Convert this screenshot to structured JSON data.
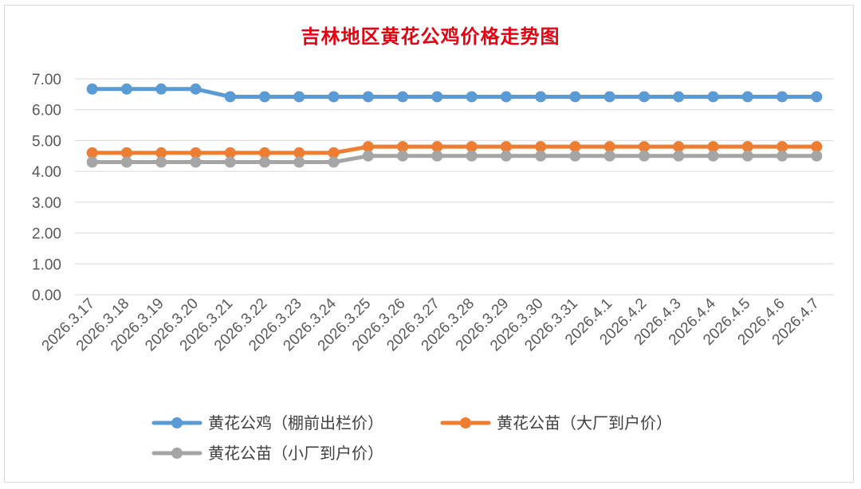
{
  "chart_data": {
    "type": "line",
    "title": "吉林地区黄花公鸡价格走势图",
    "xlabel": "",
    "ylabel": "",
    "ylim": [
      0,
      7
    ],
    "yticks": [
      "0.00",
      "1.00",
      "2.00",
      "3.00",
      "4.00",
      "5.00",
      "6.00",
      "7.00"
    ],
    "grid": true,
    "legend_position": "bottom",
    "categories": [
      "2026.3.17",
      "2026.3.18",
      "2026.3.19",
      "2026.3.20",
      "2026.3.21",
      "2026.3.22",
      "2026.3.23",
      "2026.3.24",
      "2026.3.25",
      "2026.3.26",
      "2026.3.27",
      "2026.3.28",
      "2026.3.29",
      "2026.3.30",
      "2026.3.31",
      "2026.4.1",
      "2026.4.2",
      "2026.4.3",
      "2026.4.4",
      "2026.4.5",
      "2026.4.6",
      "2026.4.7"
    ],
    "series": [
      {
        "name": "黄花公鸡（棚前出栏价）",
        "color": "#5b9bd5",
        "values": [
          6.67,
          6.67,
          6.67,
          6.67,
          6.42,
          6.42,
          6.42,
          6.42,
          6.42,
          6.42,
          6.42,
          6.42,
          6.42,
          6.42,
          6.42,
          6.42,
          6.42,
          6.42,
          6.42,
          6.42,
          6.42,
          6.42
        ]
      },
      {
        "name": "黄花公苗（大厂到户价）",
        "color": "#ed7d31",
        "values": [
          4.6,
          4.6,
          4.6,
          4.6,
          4.6,
          4.6,
          4.6,
          4.6,
          4.8,
          4.8,
          4.8,
          4.8,
          4.8,
          4.8,
          4.8,
          4.8,
          4.8,
          4.8,
          4.8,
          4.8,
          4.8,
          4.8
        ]
      },
      {
        "name": "黄花公苗（小厂到户价）",
        "color": "#a5a5a5",
        "values": [
          4.3,
          4.3,
          4.3,
          4.3,
          4.3,
          4.3,
          4.3,
          4.3,
          4.5,
          4.5,
          4.5,
          4.5,
          4.5,
          4.5,
          4.5,
          4.5,
          4.5,
          4.5,
          4.5,
          4.5,
          4.5,
          4.5
        ]
      }
    ]
  }
}
